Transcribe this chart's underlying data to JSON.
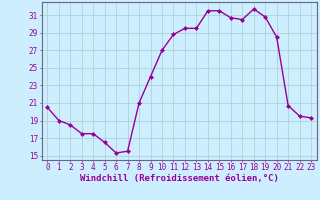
{
  "x": [
    0,
    1,
    2,
    3,
    4,
    5,
    6,
    7,
    8,
    9,
    10,
    11,
    12,
    13,
    14,
    15,
    16,
    17,
    18,
    19,
    20,
    21,
    22,
    23
  ],
  "y": [
    20.5,
    19.0,
    18.5,
    17.5,
    17.5,
    16.5,
    15.3,
    15.5,
    21.0,
    24.0,
    27.0,
    28.8,
    29.5,
    29.5,
    31.5,
    31.5,
    30.7,
    30.5,
    31.7,
    30.8,
    28.5,
    20.7,
    19.5,
    19.3
  ],
  "line_color": "#990099",
  "marker": "D",
  "markersize": 2.0,
  "linewidth": 1.0,
  "xlabel": "Windchill (Refroidissement éolien,°C)",
  "xlabel_fontsize": 6.5,
  "ylabel_ticks": [
    15,
    17,
    19,
    21,
    23,
    25,
    27,
    29,
    31
  ],
  "xlim": [
    -0.5,
    23.5
  ],
  "ylim": [
    14.5,
    32.5
  ],
  "bg_color": "#cceeff",
  "grid_color": "#aacccc",
  "tick_fontsize": 5.5,
  "xlabel_color": "#990099",
  "tick_color": "#990099"
}
